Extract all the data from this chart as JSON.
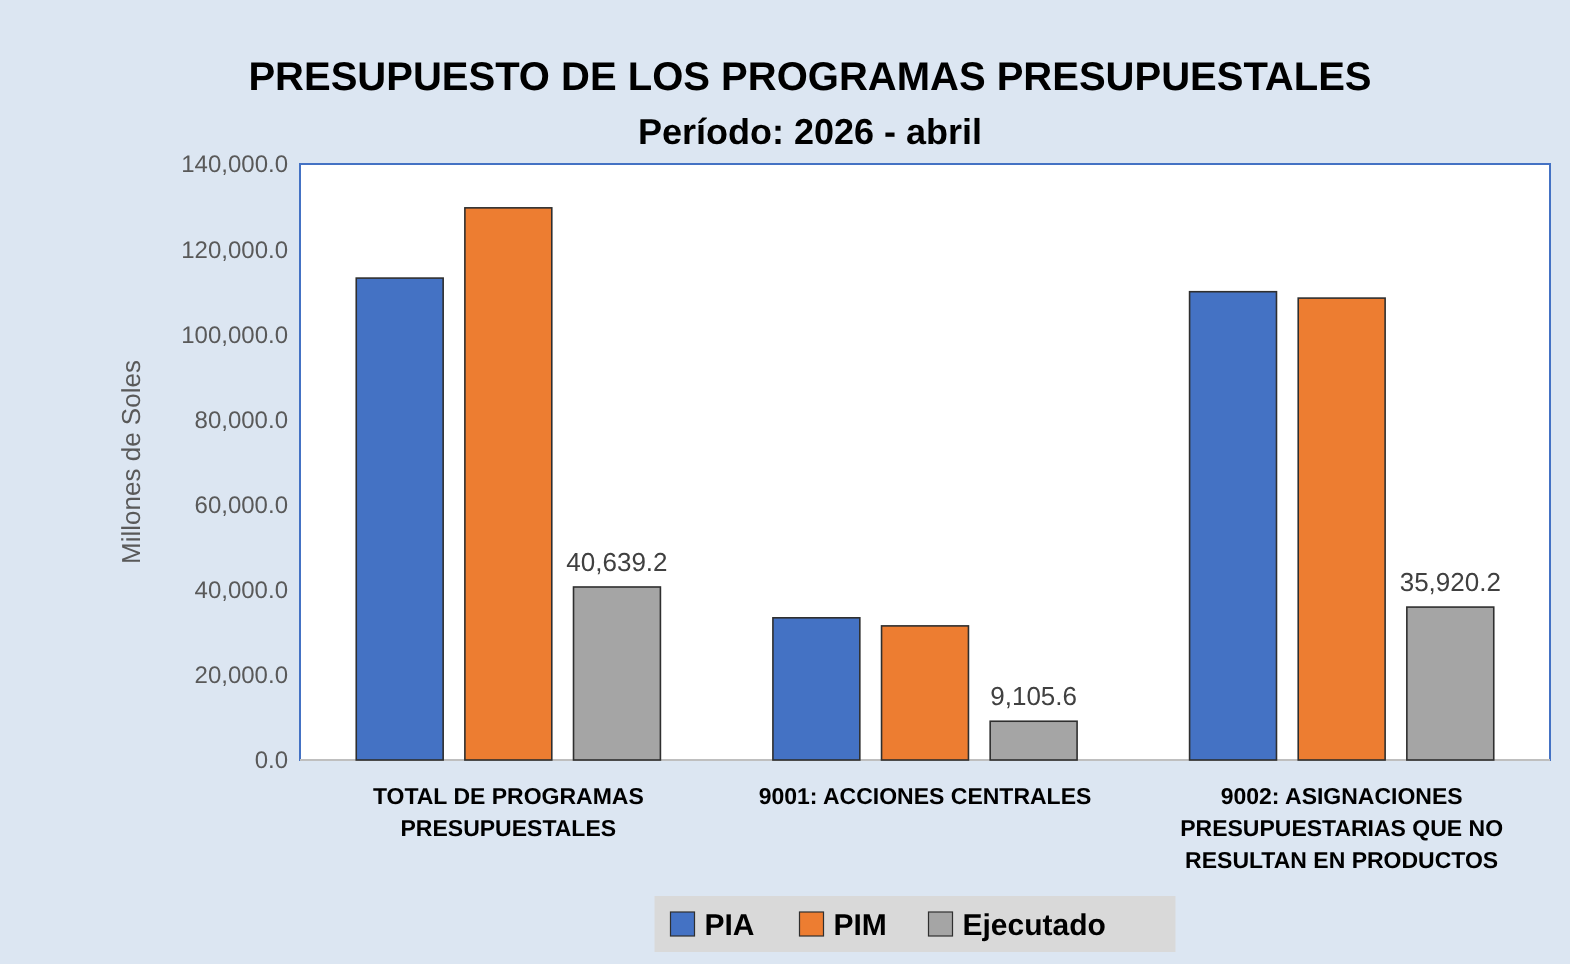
{
  "chart_data": {
    "type": "bar",
    "title": "PRESUPUESTO DE LOS PROGRAMAS PRESUPUESTALES",
    "subtitle": "Período: 2026 - abril",
    "ylabel": "Millones de Soles",
    "categories": [
      "TOTAL DE PROGRAMAS PRESUPUESTALES",
      "9001: ACCIONES CENTRALES",
      "9002: ASIGNACIONES PRESUPUESTARIAS QUE NO RESULTAN EN PRODUCTOS"
    ],
    "series": [
      {
        "name": "PIA",
        "color": "#4472c4",
        "values": [
          113200,
          33400,
          110000
        ]
      },
      {
        "name": "PIM",
        "color": "#ed7d31",
        "values": [
          129700,
          31500,
          108500
        ]
      },
      {
        "name": "Ejecutado",
        "color": "#a5a5a5",
        "values": [
          40639.2,
          9105.6,
          35920.2
        ],
        "value_labels": [
          "40,639.2",
          "9,105.6",
          "35,920.2"
        ]
      }
    ],
    "ylim": [
      0,
      140000
    ],
    "yticks": [
      {
        "value": 0,
        "label": "0.0"
      },
      {
        "value": 20000,
        "label": "20,000.0"
      },
      {
        "value": 40000,
        "label": "40,000.0"
      },
      {
        "value": 60000,
        "label": "60,000.0"
      },
      {
        "value": 80000,
        "label": "80,000.0"
      },
      {
        "value": 100000,
        "label": "100,000.0"
      },
      {
        "value": 120000,
        "label": "120,000.0"
      },
      {
        "value": 140000,
        "label": "140,000.0"
      }
    ],
    "grid": false,
    "legend": "bottom"
  }
}
